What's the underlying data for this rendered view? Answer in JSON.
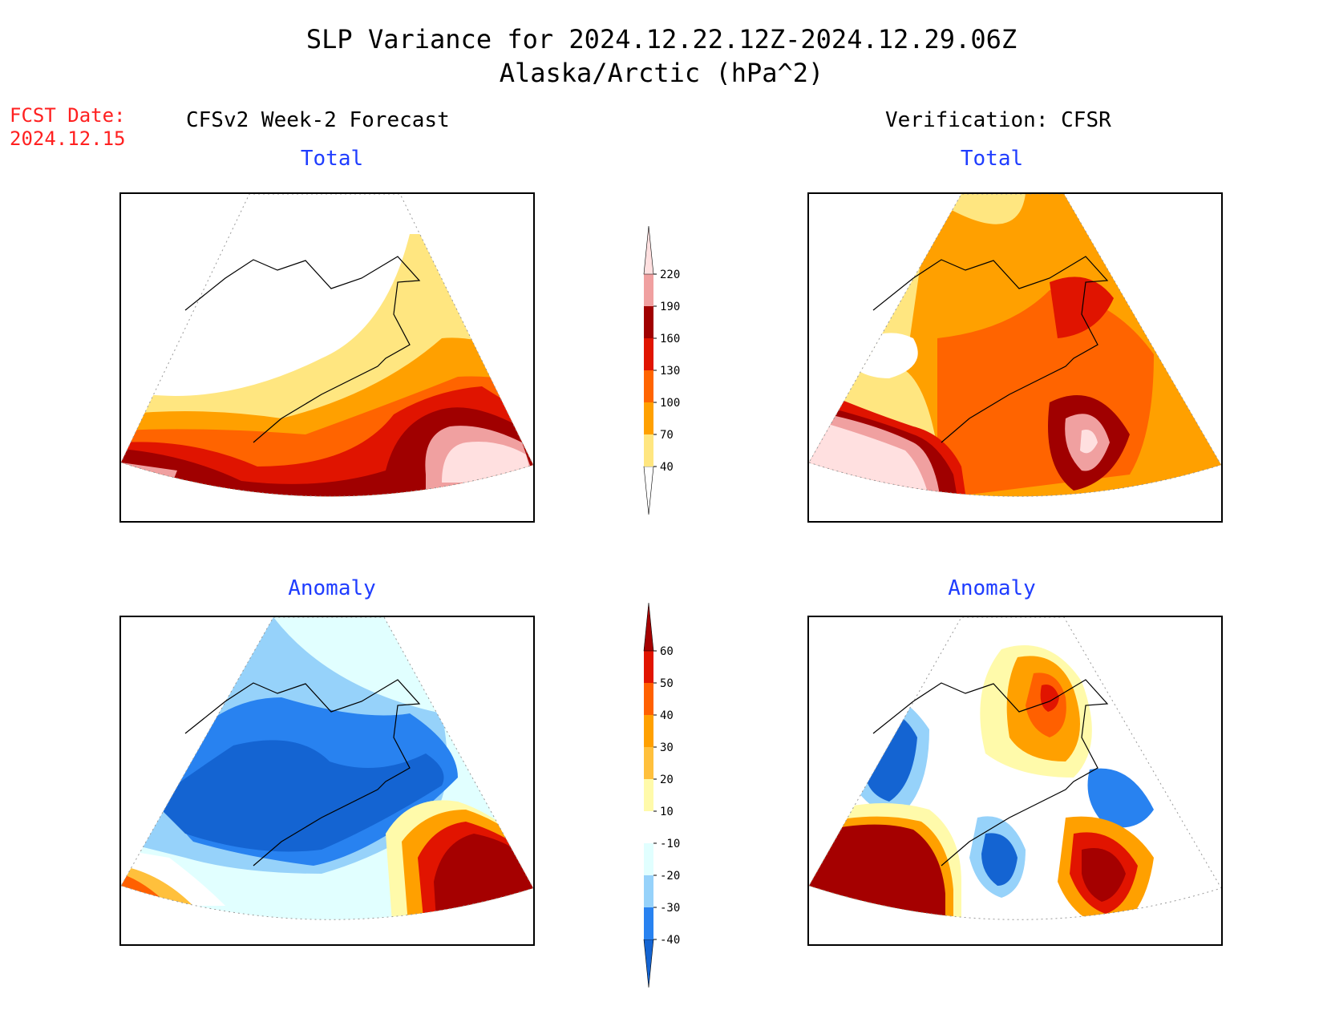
{
  "title": {
    "line1": "SLP Variance for 2024.12.22.12Z-2024.12.29.06Z",
    "line2": "Alaska/Arctic (hPa^2)"
  },
  "fcst_date": {
    "label": "FCST Date:",
    "value": "2024.12.15"
  },
  "columns": {
    "left": "CFSv2 Week-2 Forecast",
    "right": "Verification: CFSR"
  },
  "panels": {
    "fcst_total": "Total",
    "verif_total": "Total",
    "fcst_anom": "Anomaly",
    "verif_anom": "Anomaly"
  },
  "chart_data": [
    {
      "type": "heatmap",
      "name": "Total",
      "levels": [
        40,
        70,
        100,
        130,
        160,
        190,
        220
      ],
      "colors": [
        "#ffffff",
        "#ffe680",
        "#ffa000",
        "#ff6400",
        "#e01400",
        "#a00000",
        "#f0a0a0",
        "#ffe0e0"
      ],
      "tick_labels": [
        "40",
        "70",
        "100",
        "130",
        "160",
        "190",
        "220"
      ]
    },
    {
      "type": "heatmap",
      "name": "Anomaly",
      "levels": [
        -40,
        -30,
        -20,
        -10,
        10,
        20,
        30,
        40,
        50,
        60
      ],
      "colors": [
        "#1464d2",
        "#2882f0",
        "#96d2fa",
        "#e1ffff",
        "#ffffff",
        "#fffaaa",
        "#ffc03c",
        "#ffa000",
        "#ff6000",
        "#e11400",
        "#a50000"
      ],
      "tick_labels": [
        "-40",
        "-30",
        "-20",
        "-10",
        "10",
        "20",
        "30",
        "40",
        "50",
        "60"
      ]
    }
  ]
}
